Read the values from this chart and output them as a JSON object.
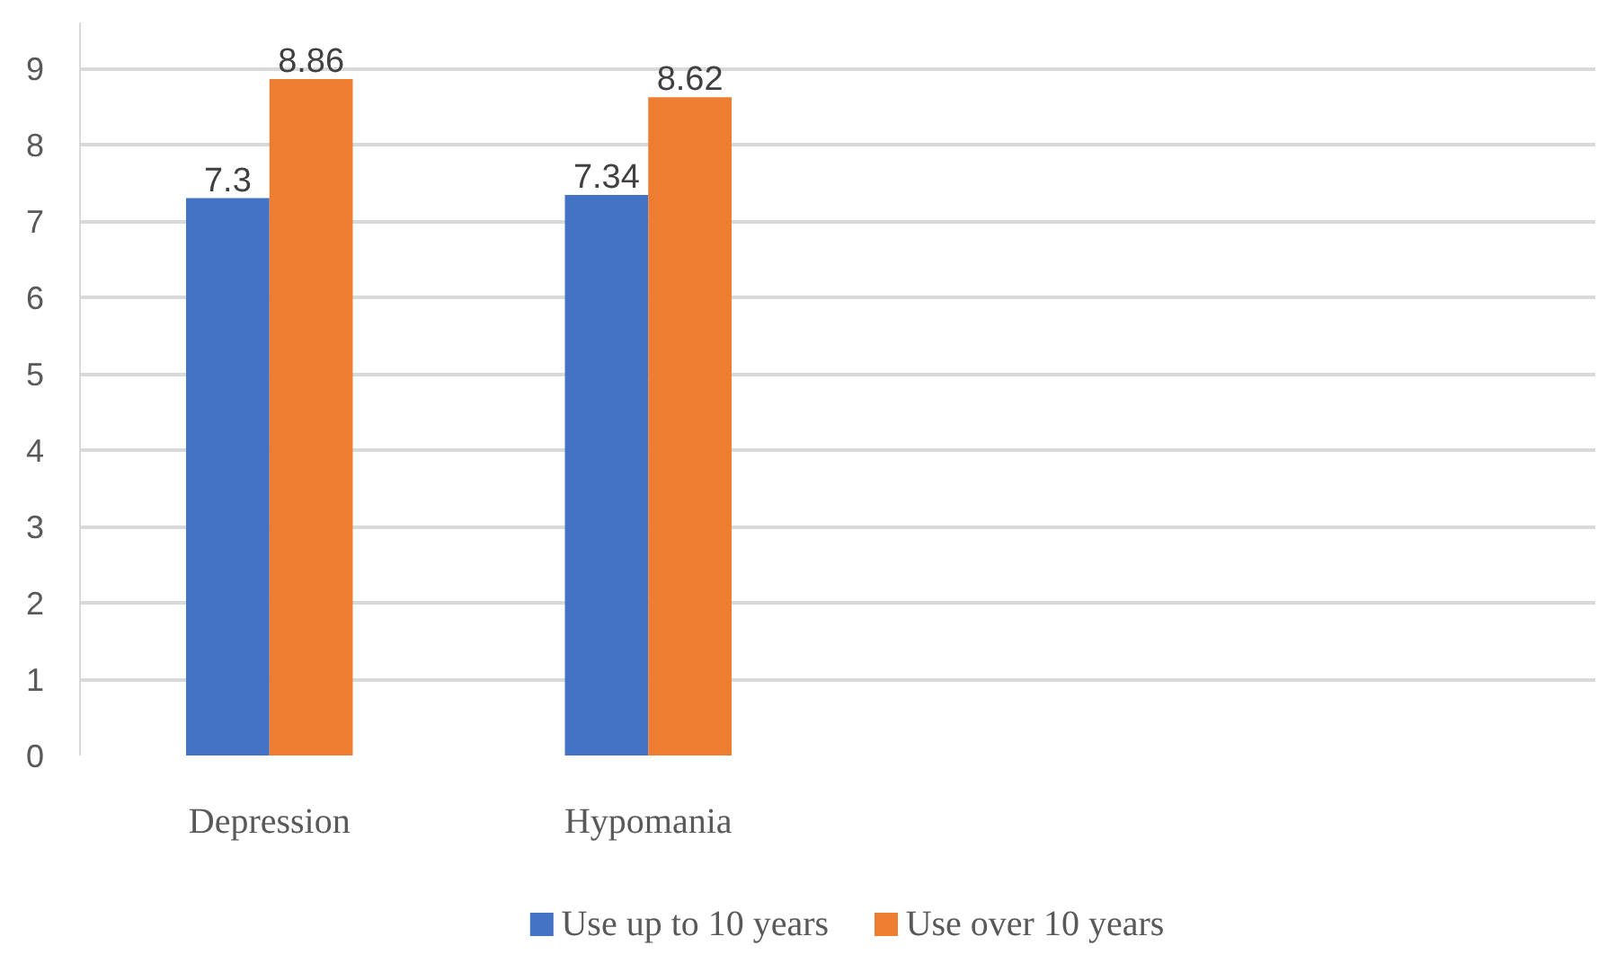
{
  "chart_data": {
    "type": "bar",
    "categories": [
      "Depression",
      "Hypomania",
      null,
      null
    ],
    "series": [
      {
        "name": "Use up to 10 years",
        "color": "#4472c4",
        "values": [
          7.3,
          7.34,
          null,
          null
        ]
      },
      {
        "name": "Use over 10 years",
        "color": "#ed7d31",
        "values": [
          8.86,
          8.62,
          null,
          null
        ]
      }
    ],
    "ylim": [
      0,
      9.6
    ],
    "yticks": [
      0,
      1,
      2,
      3,
      4,
      5,
      6,
      7,
      8,
      9
    ],
    "grid": "y",
    "legend": "bottom",
    "data_labels": true
  }
}
